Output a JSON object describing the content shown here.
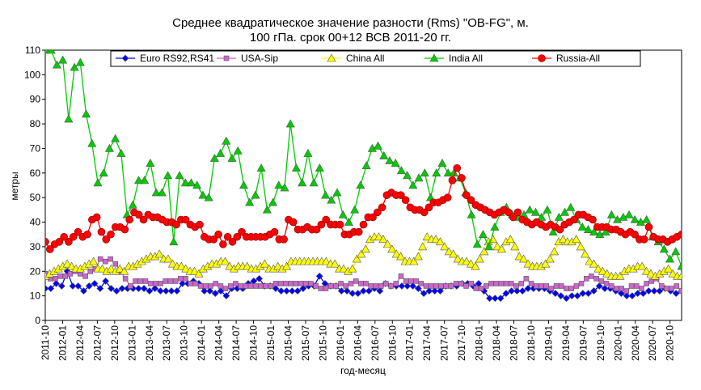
{
  "chart_data": {
    "type": "line",
    "title": "Среднее квадратическое значение разности (Rms) \"OB-FG\", м.",
    "subtitle": "100 гПа. срок 00+12 ВСВ 2011-20 гг.",
    "xlabel": "год-месяц",
    "ylabel": "метры",
    "ylim": [
      0,
      110
    ],
    "yticks": [
      0,
      10,
      20,
      30,
      40,
      50,
      60,
      70,
      80,
      90,
      100,
      110
    ],
    "x_start": "2011-10",
    "x_end": "2020-12",
    "xtick_labels": [
      "2011-10",
      "2012-01",
      "2012-04",
      "2012-07",
      "2012-10",
      "2013-01",
      "2013-04",
      "2013-07",
      "2013-10",
      "2014-01",
      "2014-04",
      "2014-07",
      "2014-10",
      "2015-01",
      "2015-04",
      "2015-07",
      "2015-10",
      "2016-01",
      "2016-04",
      "2016-07",
      "2016-10",
      "2017-01",
      "2017-04",
      "2017-07",
      "2017-10",
      "2018-01",
      "2018-04",
      "2018-07",
      "2018-10",
      "2019-01",
      "2019-04",
      "2019-07",
      "2019-10",
      "2020-01",
      "2020-04",
      "2020-07",
      "2020-10"
    ],
    "grid": false,
    "legend_position": "top",
    "series": [
      {
        "name": "Euro RS92,RS41",
        "color": "#0000ff",
        "marker": "diamond",
        "values": [
          13,
          13,
          15,
          14,
          20,
          14,
          14,
          12,
          14,
          15,
          13,
          16,
          13,
          12,
          13,
          13,
          13,
          13,
          13,
          12,
          13,
          12,
          12,
          12,
          12,
          15,
          15,
          16,
          15,
          12,
          12,
          11,
          12,
          10,
          13,
          13,
          13,
          15,
          16,
          17,
          14,
          14,
          13,
          12,
          12,
          12,
          12,
          13,
          14,
          14,
          18,
          15,
          14,
          14,
          12,
          12,
          11,
          11,
          12,
          12,
          13,
          12,
          15,
          14,
          14,
          14,
          14,
          14,
          13,
          11,
          12,
          12,
          12,
          14,
          14,
          14,
          15,
          15,
          14,
          15,
          12,
          9,
          9,
          9,
          11,
          12,
          12,
          12,
          13,
          13,
          13,
          13,
          12,
          11,
          10,
          9,
          10,
          10,
          11,
          11,
          12,
          14,
          13,
          13,
          12,
          11,
          10,
          10,
          11,
          11,
          12,
          12,
          12,
          13,
          12,
          11,
          12
        ]
      },
      {
        "name": "USA-Sip",
        "color": "#cc66cc",
        "marker": "square",
        "values": [
          19,
          17,
          17,
          18,
          18,
          19,
          20,
          19,
          18,
          20,
          21,
          25,
          24,
          25,
          23,
          20,
          17,
          14,
          16,
          16,
          16,
          15,
          15,
          15,
          16,
          16,
          16,
          17,
          17,
          15,
          15,
          14,
          14,
          14,
          15,
          14,
          13,
          14,
          15,
          14,
          14,
          14,
          14,
          14,
          14,
          14,
          15,
          15,
          15,
          15,
          15,
          15,
          15,
          15,
          14,
          13,
          13,
          14,
          14,
          15,
          14,
          15,
          16,
          15,
          15,
          14,
          14,
          14,
          15,
          14,
          15,
          18,
          16,
          16,
          16,
          15,
          14,
          14,
          14,
          14,
          14,
          14,
          15,
          15,
          14,
          15,
          13,
          13,
          14,
          15,
          15,
          15,
          15,
          15,
          14,
          15,
          17,
          15,
          14,
          14,
          14,
          13,
          14,
          14,
          13,
          13,
          14,
          15,
          17,
          18,
          17,
          16,
          15,
          14,
          13,
          13,
          12,
          14,
          14,
          13,
          15,
          16,
          17,
          14,
          13,
          13,
          14,
          12
        ]
      },
      {
        "name": "China All",
        "color": "#ffff00",
        "marker": "triangle",
        "values": [
          18,
          19,
          20,
          21,
          22,
          23,
          22,
          21,
          21,
          22,
          23,
          24,
          21,
          21,
          20,
          21,
          20,
          21,
          20,
          22,
          22,
          23,
          24,
          25,
          26,
          26,
          27,
          25,
          25,
          23,
          22,
          22,
          21,
          20,
          20,
          19,
          21,
          22,
          23,
          23,
          24,
          24,
          22,
          21,
          22,
          22,
          22,
          21,
          21,
          22,
          23,
          21,
          21,
          22,
          21,
          22,
          24,
          24,
          24,
          24,
          24,
          24,
          24,
          24,
          24,
          23,
          23,
          21,
          21,
          20,
          21,
          25,
          27,
          29,
          33,
          34,
          34,
          33,
          31,
          29,
          27,
          26,
          24,
          24,
          24,
          26,
          30,
          34,
          33,
          33,
          32,
          30,
          28,
          27,
          25,
          24,
          24,
          23,
          22,
          25,
          28,
          32,
          33,
          30,
          29,
          32,
          33,
          30,
          26,
          25,
          23,
          22,
          22,
          22,
          23,
          25,
          28,
          32,
          33,
          32,
          32,
          33,
          30,
          27,
          24,
          23,
          21,
          20,
          19,
          18,
          18,
          18,
          20,
          21,
          21,
          22,
          22,
          20,
          19,
          18,
          19,
          20,
          21,
          19,
          18,
          18
        ]
      },
      {
        "name": "India All",
        "color": "#00cc00",
        "marker": "triangle",
        "values": [
          115,
          110,
          104,
          106,
          82,
          103,
          105,
          84,
          72,
          56,
          60,
          70,
          74,
          68,
          43,
          47,
          57,
          57,
          64,
          52,
          52,
          59,
          32,
          59,
          56,
          56,
          55,
          51,
          50,
          66,
          68,
          73,
          66,
          69,
          55,
          48,
          51,
          62,
          45,
          48,
          55,
          54,
          80,
          62,
          56,
          68,
          56,
          62,
          51,
          49,
          52,
          43,
          40,
          45,
          55,
          63,
          70,
          71,
          67,
          65,
          64,
          61,
          59,
          55,
          58,
          60,
          50,
          60,
          64,
          60,
          60,
          58,
          52,
          43,
          31,
          35,
          30,
          38,
          44,
          46,
          43,
          42,
          43,
          45,
          44,
          42,
          45,
          36,
          42,
          44,
          46,
          41,
          38,
          37,
          36,
          35,
          36,
          43,
          41,
          42,
          43,
          41,
          40,
          41,
          34,
          32,
          29,
          25,
          28,
          22
        ]
      },
      {
        "name": "Russia-All",
        "color": "#ff0000",
        "marker": "circle",
        "values": [
          32,
          29,
          31,
          32,
          34,
          32,
          34,
          36,
          34,
          35,
          41,
          42,
          36,
          33,
          35,
          38,
          38,
          37,
          41,
          44,
          43,
          41,
          43,
          42,
          42,
          41,
          40,
          40,
          39,
          41,
          41,
          39,
          38,
          39,
          34,
          33,
          33,
          35,
          31,
          34,
          32,
          34,
          36,
          34,
          34,
          34,
          34,
          34,
          35,
          36,
          33,
          33,
          41,
          40,
          37,
          37,
          38,
          37,
          37,
          39,
          41,
          39,
          39,
          39,
          35,
          35,
          36,
          36,
          39,
          42,
          42,
          44,
          46,
          51,
          52,
          51,
          51,
          49,
          46,
          45,
          45,
          44,
          46,
          48,
          48,
          49,
          50,
          57,
          62,
          58,
          51,
          49,
          47,
          46,
          45,
          44,
          43,
          44,
          45,
          44,
          42,
          44,
          41,
          40,
          39,
          40,
          39,
          38,
          39,
          38,
          37,
          39,
          40,
          41,
          43,
          43,
          42,
          41,
          38,
          38,
          38,
          37,
          37,
          36,
          35,
          36,
          35,
          33,
          33,
          38,
          34,
          33,
          33,
          32,
          33,
          34,
          35
        ]
      }
    ]
  }
}
